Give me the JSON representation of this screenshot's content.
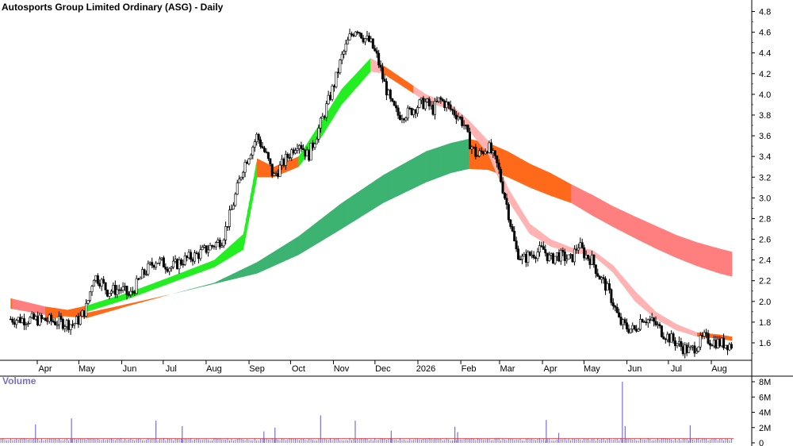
{
  "chart_data": {
    "type": "candlestick",
    "title": "Autosports Group Limited Ordinary (ASG) - Daily",
    "y_axis": {
      "ylim": [
        1.45,
        4.85
      ],
      "ticks": [
        "4.8",
        "4.6",
        "4.4",
        "4.2",
        "4.0",
        "3.8",
        "3.6",
        "3.4",
        "3.2",
        "3.0",
        "2.8",
        "2.6",
        "2.4",
        "2.2",
        "2.0",
        "1.8",
        "1.6"
      ]
    },
    "x_axis": {
      "labels": [
        "Apr",
        "May",
        "Jun",
        "Jul",
        "Aug",
        "Sep",
        "Oct",
        "Nov",
        "Dec",
        "2026",
        "Feb",
        "Mar",
        "Apr",
        "May",
        "Jun",
        "Jul",
        "Aug"
      ],
      "label_positions_days": [
        0,
        30,
        61,
        91,
        122,
        153,
        183,
        214,
        244,
        275,
        306,
        334,
        365,
        395,
        426,
        456,
        487
      ]
    },
    "price_path": {
      "day": [
        -25,
        0,
        10,
        20,
        25,
        30,
        35,
        40,
        45,
        55,
        61,
        70,
        80,
        91,
        100,
        110,
        122,
        128,
        135,
        143,
        150,
        153,
        160,
        165,
        170,
        183,
        190,
        200,
        205,
        210,
        214,
        220,
        225,
        230,
        235,
        240,
        244,
        250,
        255,
        262,
        270,
        275,
        280,
        285,
        290,
        293,
        298,
        303,
        306,
        312,
        320,
        327,
        334,
        340,
        345,
        350,
        360,
        365,
        370,
        380,
        385,
        390,
        395,
        400,
        405,
        410,
        415,
        420,
        426,
        431,
        436,
        441,
        446,
        451,
        456,
        461,
        466,
        471,
        476,
        481,
        487,
        496
      ],
      "close": [
        1.83,
        1.82,
        1.8,
        1.78,
        1.83,
        1.95,
        2.25,
        2.2,
        2.1,
        2.12,
        2.05,
        2.25,
        2.4,
        2.33,
        2.4,
        2.45,
        2.55,
        2.6,
        2.9,
        3.3,
        3.5,
        3.6,
        3.4,
        3.2,
        3.3,
        3.55,
        3.4,
        3.75,
        3.95,
        4.15,
        4.35,
        4.55,
        4.65,
        4.55,
        4.5,
        4.35,
        4.15,
        3.9,
        3.8,
        3.82,
        3.9,
        3.92,
        3.85,
        3.95,
        3.9,
        3.85,
        3.8,
        3.7,
        3.55,
        3.4,
        3.5,
        3.3,
        2.9,
        2.5,
        2.4,
        2.45,
        2.5,
        2.4,
        2.45,
        2.4,
        2.55,
        2.45,
        2.4,
        2.25,
        2.15,
        2.0,
        1.8,
        1.75,
        1.72,
        1.85,
        1.82,
        1.78,
        1.7,
        1.65,
        1.6,
        1.55,
        1.52,
        1.58,
        1.65,
        1.62,
        1.6,
        1.58
      ]
    },
    "guppy_short_band": {
      "day": [
        0,
        30,
        61,
        91,
        122,
        143,
        153,
        165,
        183,
        200,
        214,
        235,
        244,
        275,
        293,
        306,
        320,
        334,
        350,
        365,
        380,
        395,
        410,
        426,
        441,
        456,
        471,
        487,
        496
      ],
      "upper": [
        1.87,
        1.96,
        2.09,
        2.24,
        2.4,
        2.65,
        3.38,
        3.3,
        3.4,
        3.75,
        4.05,
        4.35,
        4.28,
        4.0,
        3.9,
        3.75,
        3.55,
        3.1,
        2.75,
        2.6,
        2.52,
        2.5,
        2.35,
        2.1,
        1.9,
        1.78,
        1.7,
        1.68,
        1.66
      ],
      "lower": [
        1.82,
        1.9,
        2.03,
        2.18,
        2.33,
        2.5,
        3.2,
        3.2,
        3.3,
        3.6,
        3.9,
        4.22,
        4.2,
        3.93,
        3.85,
        3.65,
        3.42,
        2.98,
        2.65,
        2.53,
        2.47,
        2.45,
        2.28,
        2.0,
        1.83,
        1.72,
        1.66,
        1.64,
        1.62
      ]
    },
    "guppy_long_band": {
      "day": [
        -25,
        0,
        30,
        61,
        91,
        122,
        153,
        183,
        214,
        244,
        275,
        293,
        306,
        320,
        334,
        350,
        365,
        380,
        395,
        410,
        426,
        441,
        456,
        471,
        487,
        496
      ],
      "upper": [
        2.03,
        1.95,
        1.89,
        1.98,
        2.07,
        2.18,
        2.38,
        2.63,
        2.95,
        3.22,
        3.45,
        3.53,
        3.57,
        3.53,
        3.45,
        3.33,
        3.24,
        3.13,
        3.03,
        2.92,
        2.82,
        2.73,
        2.64,
        2.57,
        2.51,
        2.48
      ],
      "lower": [
        1.93,
        1.87,
        1.84,
        1.96,
        2.07,
        2.17,
        2.27,
        2.45,
        2.7,
        2.95,
        3.15,
        3.24,
        3.28,
        3.27,
        3.2,
        3.1,
        3.02,
        2.95,
        2.83,
        2.72,
        2.61,
        2.51,
        2.42,
        2.34,
        2.27,
        2.24
      ]
    },
    "volume": {
      "title": "Volume",
      "ticks": [
        "8M",
        "6M",
        "4M",
        "2M",
        "0"
      ],
      "ylim": [
        0,
        8.5
      ],
      "spikes": [
        {
          "day": -7,
          "value": 2.4
        },
        {
          "day": 19,
          "value": 3.2
        },
        {
          "day": 80,
          "value": 2.9
        },
        {
          "day": 99,
          "value": 2.2
        },
        {
          "day": 158,
          "value": 1.5
        },
        {
          "day": 166,
          "value": 2.0
        },
        {
          "day": 199,
          "value": 3.6
        },
        {
          "day": 224,
          "value": 2.9
        },
        {
          "day": 250,
          "value": 1.6
        },
        {
          "day": 296,
          "value": 2.1
        },
        {
          "day": 298,
          "value": 1.4
        },
        {
          "day": 362,
          "value": 3.0
        },
        {
          "day": 371,
          "value": 1.3
        },
        {
          "day": 417,
          "value": 8.0
        },
        {
          "day": 419,
          "value": 2.2
        },
        {
          "day": 466,
          "value": 2.3
        }
      ],
      "baseline": 0.3
    },
    "colors": {
      "candle": "#000000",
      "short_band_up": "#22ee22",
      "short_band_down": "#ffb3b3",
      "long_band_up": "#3cb371",
      "long_band_down": "#ff7f7f",
      "orange": "#ff6a1a",
      "volume_bar": "#7b6fd6",
      "volume_line": "#d44040"
    }
  }
}
